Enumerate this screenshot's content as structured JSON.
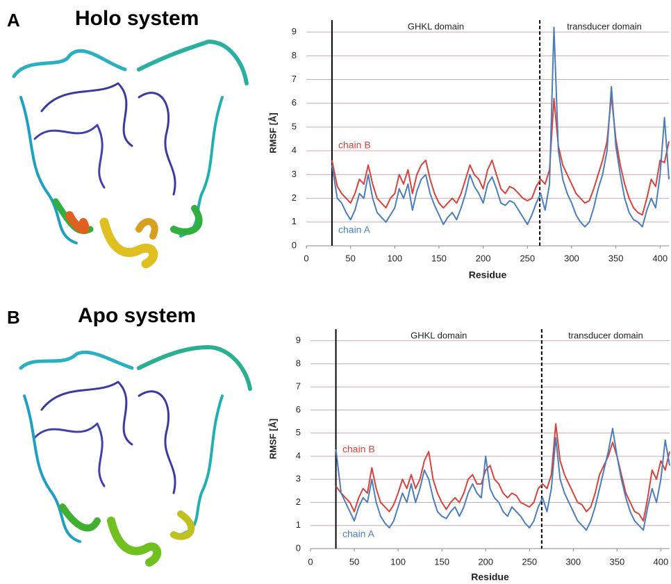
{
  "panels": [
    {
      "label": "A",
      "title": "Holo system"
    },
    {
      "label": "B",
      "title": "Apo system"
    }
  ],
  "chart_data": [
    {
      "type": "line",
      "xlabel": "Residue",
      "ylabel": "RMSF [Å]",
      "xlim": [
        0,
        410
      ],
      "ylim": [
        0,
        9.5
      ],
      "xticks": [
        0,
        50,
        100,
        150,
        200,
        250,
        300,
        350,
        400
      ],
      "yticks": [
        0,
        1,
        2,
        3,
        4,
        5,
        6,
        7,
        8,
        9
      ],
      "grid": true,
      "domain_labels": [
        "GHKL domain",
        "transducer domain"
      ],
      "boundaries": [
        {
          "x": 29,
          "style": "solid"
        },
        {
          "x": 264,
          "style": "dashed"
        }
      ],
      "x": [
        29,
        35,
        40,
        45,
        50,
        55,
        60,
        65,
        70,
        75,
        80,
        85,
        90,
        95,
        100,
        105,
        110,
        115,
        120,
        125,
        130,
        135,
        140,
        145,
        150,
        155,
        160,
        165,
        170,
        175,
        180,
        185,
        190,
        195,
        200,
        205,
        210,
        215,
        220,
        225,
        230,
        235,
        240,
        245,
        250,
        255,
        260,
        265,
        270,
        275,
        280,
        285,
        290,
        295,
        300,
        305,
        310,
        315,
        320,
        325,
        330,
        335,
        340,
        345,
        350,
        355,
        360,
        365,
        370,
        375,
        380,
        385,
        390,
        395,
        400,
        405,
        410
      ],
      "series": [
        {
          "name": "chain B",
          "color": "#d9413a",
          "values": [
            3.6,
            2.5,
            2.2,
            2.0,
            1.8,
            2.2,
            2.8,
            2.6,
            3.4,
            2.6,
            2.0,
            1.8,
            1.6,
            2.0,
            2.2,
            3.0,
            2.6,
            3.2,
            2.2,
            3.0,
            3.4,
            3.6,
            2.8,
            2.2,
            1.8,
            1.6,
            1.8,
            2.0,
            1.8,
            2.2,
            2.8,
            3.4,
            3.0,
            2.8,
            2.4,
            3.2,
            3.6,
            3.0,
            2.4,
            2.2,
            2.5,
            2.4,
            2.2,
            2.0,
            1.9,
            2.0,
            2.5,
            2.8,
            2.6,
            3.2,
            6.2,
            4.2,
            3.4,
            3.0,
            2.6,
            2.2,
            2.0,
            1.8,
            1.9,
            2.4,
            3.0,
            3.6,
            4.4,
            6.3,
            4.5,
            3.4,
            2.6,
            2.0,
            1.6,
            1.4,
            1.3,
            2.0,
            2.8,
            2.5,
            3.6,
            3.5,
            4.4
          ]
        },
        {
          "name": "chain A",
          "color": "#4a7ebb",
          "values": [
            3.4,
            2.0,
            1.8,
            1.4,
            1.1,
            1.5,
            2.2,
            2.0,
            3.0,
            2.0,
            1.4,
            1.2,
            1.0,
            1.3,
            1.6,
            2.4,
            2.0,
            2.6,
            1.5,
            2.3,
            2.8,
            3.0,
            2.2,
            1.7,
            1.3,
            0.9,
            1.2,
            1.4,
            1.1,
            1.6,
            2.2,
            3.0,
            2.5,
            2.2,
            1.8,
            2.6,
            2.9,
            2.4,
            1.8,
            1.7,
            1.9,
            1.8,
            1.5,
            1.2,
            0.9,
            1.3,
            1.8,
            2.2,
            1.5,
            2.6,
            9.2,
            4.0,
            2.8,
            2.2,
            1.8,
            1.3,
            1.0,
            0.8,
            1.0,
            1.6,
            2.4,
            3.0,
            4.0,
            6.7,
            4.2,
            3.0,
            2.0,
            1.4,
            1.1,
            1.0,
            0.8,
            1.5,
            2.0,
            1.6,
            3.0,
            5.4,
            2.8
          ]
        }
      ]
    },
    {
      "type": "line",
      "xlabel": "Residue",
      "ylabel": "RMSF [Å]",
      "xlim": [
        0,
        410
      ],
      "ylim": [
        0,
        9.5
      ],
      "xticks": [
        0,
        50,
        100,
        150,
        200,
        250,
        300,
        350,
        400
      ],
      "yticks": [
        0,
        1,
        2,
        3,
        4,
        5,
        6,
        7,
        8,
        9
      ],
      "grid": true,
      "domain_labels": [
        "GHKL domain",
        "transducer domain"
      ],
      "boundaries": [
        {
          "x": 29,
          "style": "solid"
        },
        {
          "x": 264,
          "style": "dashed"
        }
      ],
      "x": [
        29,
        35,
        40,
        45,
        50,
        55,
        60,
        65,
        70,
        75,
        80,
        85,
        90,
        95,
        100,
        105,
        110,
        115,
        120,
        125,
        130,
        135,
        140,
        145,
        150,
        155,
        160,
        165,
        170,
        175,
        180,
        185,
        190,
        195,
        200,
        205,
        210,
        215,
        220,
        225,
        230,
        235,
        240,
        245,
        250,
        255,
        260,
        265,
        270,
        275,
        280,
        285,
        290,
        295,
        300,
        305,
        310,
        315,
        320,
        325,
        330,
        335,
        340,
        345,
        350,
        355,
        360,
        365,
        370,
        375,
        380,
        385,
        390,
        395,
        400,
        405,
        410
      ],
      "series": [
        {
          "name": "chain B",
          "color": "#d9413a",
          "values": [
            2.7,
            2.4,
            2.2,
            2.0,
            1.6,
            2.2,
            2.6,
            2.4,
            3.5,
            2.6,
            2.0,
            1.8,
            1.6,
            1.9,
            2.4,
            3.0,
            2.6,
            3.2,
            2.6,
            3.0,
            3.8,
            4.2,
            3.0,
            2.4,
            2.0,
            1.7,
            2.0,
            2.2,
            2.0,
            2.4,
            3.0,
            3.2,
            2.8,
            2.8,
            3.4,
            3.6,
            3.0,
            2.8,
            2.4,
            2.2,
            2.4,
            2.3,
            2.0,
            1.9,
            1.8,
            2.0,
            2.6,
            2.8,
            2.6,
            3.2,
            5.4,
            3.8,
            3.2,
            2.8,
            2.4,
            2.0,
            1.9,
            1.6,
            1.8,
            2.4,
            3.2,
            3.6,
            4.0,
            4.6,
            4.0,
            3.2,
            2.4,
            2.0,
            1.6,
            1.5,
            1.2,
            2.2,
            3.4,
            3.0,
            3.8,
            3.4,
            4.2
          ]
        },
        {
          "name": "chain A",
          "color": "#4a7ebb",
          "values": [
            4.3,
            2.4,
            2.0,
            1.6,
            1.2,
            1.8,
            2.2,
            2.0,
            3.0,
            2.0,
            1.4,
            1.1,
            0.9,
            1.2,
            1.8,
            2.4,
            2.0,
            2.8,
            2.0,
            2.6,
            3.4,
            3.0,
            2.2,
            1.6,
            1.4,
            1.3,
            1.6,
            1.8,
            1.4,
            1.8,
            2.4,
            2.8,
            2.4,
            2.2,
            4.0,
            2.6,
            2.2,
            2.0,
            1.6,
            1.4,
            1.8,
            1.6,
            1.4,
            1.1,
            0.9,
            1.2,
            1.8,
            2.2,
            1.6,
            2.6,
            4.8,
            3.0,
            2.4,
            2.0,
            1.6,
            1.2,
            1.0,
            0.8,
            1.2,
            1.8,
            2.6,
            3.4,
            4.2,
            5.2,
            4.0,
            3.0,
            2.2,
            1.6,
            1.2,
            1.0,
            0.8,
            1.8,
            2.6,
            2.0,
            3.0,
            4.7,
            3.6
          ]
        }
      ]
    }
  ]
}
